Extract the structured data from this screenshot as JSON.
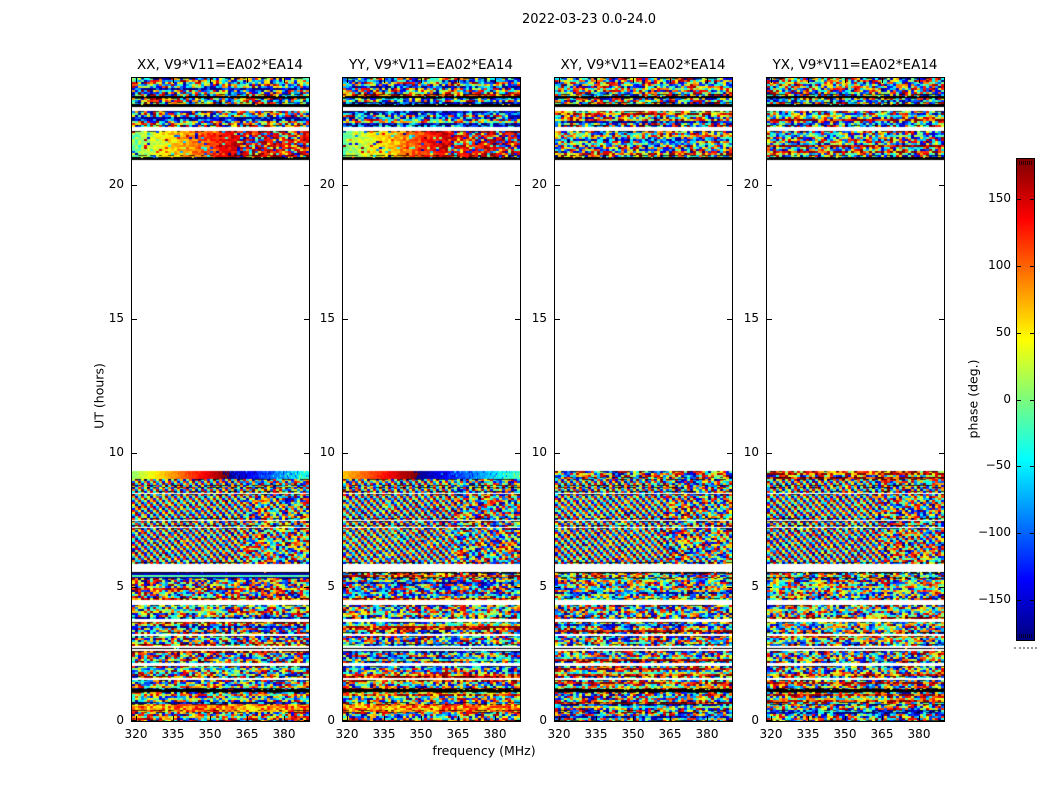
{
  "figure": {
    "title": "2022-03-23 0.0-24.0"
  },
  "colors": {
    "background": "#ffffff",
    "frame": "#000000",
    "jet_stops": [
      "#7f0000 0%",
      "#ff0000 12.5%",
      "#ffff00 37.5%",
      "#7cfc7c 50%",
      "#00ffff 62.5%",
      "#0000ff 87.5%",
      "#00007f 100%"
    ]
  },
  "chart_data": {
    "type": "heatmap",
    "title": "2022-03-23 0.0-24.0",
    "colormap": "jet",
    "panels": [
      {
        "pol": "XX",
        "label": "XX, V9*V11=EA02*EA14",
        "grad": {
          "start": 0.52,
          "slope": 0.9
        },
        "seed": 101
      },
      {
        "pol": "YY",
        "label": "YY, V9*V11=EA02*EA14",
        "grad": {
          "start": 0.68,
          "slope": 0.78
        },
        "seed": 202
      },
      {
        "pol": "XY",
        "label": "XY, V9*V11=EA02*EA14",
        "grad": null,
        "seed": 303
      },
      {
        "pol": "YX",
        "label": "YX, V9*V11=EA02*EA14",
        "grad": null,
        "seed": 404
      }
    ],
    "x_axis": {
      "label": "frequency (MHz)",
      "ticks": [
        320,
        335,
        350,
        365,
        380
      ],
      "range": [
        318.5,
        390.0
      ]
    },
    "y_axis": {
      "label": "UT (hours)",
      "ticks": [
        0,
        5,
        10,
        15,
        20
      ],
      "range": [
        0,
        24
      ]
    },
    "colorbar": {
      "label": "phase (deg.)",
      "ticks": [
        150,
        100,
        50,
        0,
        -50,
        -100,
        -150
      ],
      "range": [
        -180,
        180
      ]
    },
    "time_bands": [
      {
        "t0": 23.33,
        "t1": 24.0,
        "kind": "noise"
      },
      {
        "t0": 23.25,
        "t1": 23.33,
        "kind": "black"
      },
      {
        "t0": 23.03,
        "t1": 23.25,
        "kind": "noise"
      },
      {
        "t0": 22.9,
        "t1": 23.03,
        "kind": "black"
      },
      {
        "t0": 22.76,
        "t1": 22.9,
        "kind": "white"
      },
      {
        "t0": 22.2,
        "t1": 22.76,
        "kind": "noise"
      },
      {
        "t0": 22.02,
        "t1": 22.2,
        "kind": "white"
      },
      {
        "t0": 21.05,
        "t1": 22.02,
        "kinds": {
          "XX": "warmgrad",
          "YY": "warmgrad",
          "default": "noise"
        }
      },
      {
        "t0": 20.95,
        "t1": 21.05,
        "kind": "black"
      },
      {
        "t0": 9.32,
        "t1": 20.95,
        "kind": "white"
      },
      {
        "t0": 9.08,
        "t1": 9.32,
        "kinds": {
          "XX": "gradient",
          "YY": "gradient",
          "default": "noise"
        }
      },
      {
        "t0": 9.04,
        "t1": 9.08,
        "kind": "white"
      },
      {
        "t0": 8.78,
        "t1": 9.04,
        "kind": "diag"
      },
      {
        "t0": 8.72,
        "t1": 8.78,
        "kind": "white"
      },
      {
        "t0": 8.52,
        "t1": 8.72,
        "kind": "diag"
      },
      {
        "t0": 8.46,
        "t1": 8.52,
        "kind": "white"
      },
      {
        "t0": 7.55,
        "t1": 8.46,
        "kind": "diag"
      },
      {
        "t0": 7.48,
        "t1": 7.55,
        "kind": "white"
      },
      {
        "t0": 7.28,
        "t1": 7.48,
        "kind": "diag"
      },
      {
        "t0": 7.22,
        "t1": 7.28,
        "kind": "white"
      },
      {
        "t0": 5.85,
        "t1": 7.22,
        "kind": "diag"
      },
      {
        "t0": 5.56,
        "t1": 5.85,
        "kind": "white"
      },
      {
        "t0": 5.52,
        "t1": 5.56,
        "kind": "black"
      },
      {
        "t0": 5.35,
        "t1": 5.52,
        "kinds": {
          "XX": "navy",
          "default": "noise"
        }
      },
      {
        "t0": 4.55,
        "t1": 5.35,
        "kind": "noise"
      },
      {
        "t0": 4.32,
        "t1": 4.55,
        "kind": "white"
      },
      {
        "t0": 3.84,
        "t1": 4.32,
        "kind": "noise"
      },
      {
        "t0": 3.68,
        "t1": 3.84,
        "kind": "white"
      },
      {
        "t0": 3.27,
        "t1": 3.68,
        "kind": "noise"
      },
      {
        "t0": 3.16,
        "t1": 3.27,
        "kind": "white"
      },
      {
        "t0": 2.79,
        "t1": 3.16,
        "kind": "noise"
      },
      {
        "t0": 2.72,
        "t1": 2.79,
        "kind": "white"
      },
      {
        "t0": 2.68,
        "t1": 2.72,
        "kind": "black"
      },
      {
        "t0": 2.6,
        "t1": 2.68,
        "kind": "white"
      },
      {
        "t0": 2.19,
        "t1": 2.6,
        "kind": "noise"
      },
      {
        "t0": 2.04,
        "t1": 2.19,
        "kind": "white"
      },
      {
        "t0": 1.63,
        "t1": 2.04,
        "kind": "noise"
      },
      {
        "t0": 1.52,
        "t1": 1.63,
        "kind": "white"
      },
      {
        "t0": 1.18,
        "t1": 1.52,
        "kind": "noise"
      },
      {
        "t0": 1.1,
        "t1": 1.18,
        "kind": "black"
      },
      {
        "t0": 0.62,
        "t1": 1.1,
        "kind": "noise"
      },
      {
        "t0": 0.35,
        "t1": 0.62,
        "kinds": {
          "XX": "warmrow",
          "YY": "warmrow",
          "default": "noise"
        }
      },
      {
        "t0": 0.0,
        "t1": 0.35,
        "kind": "noise"
      }
    ]
  }
}
